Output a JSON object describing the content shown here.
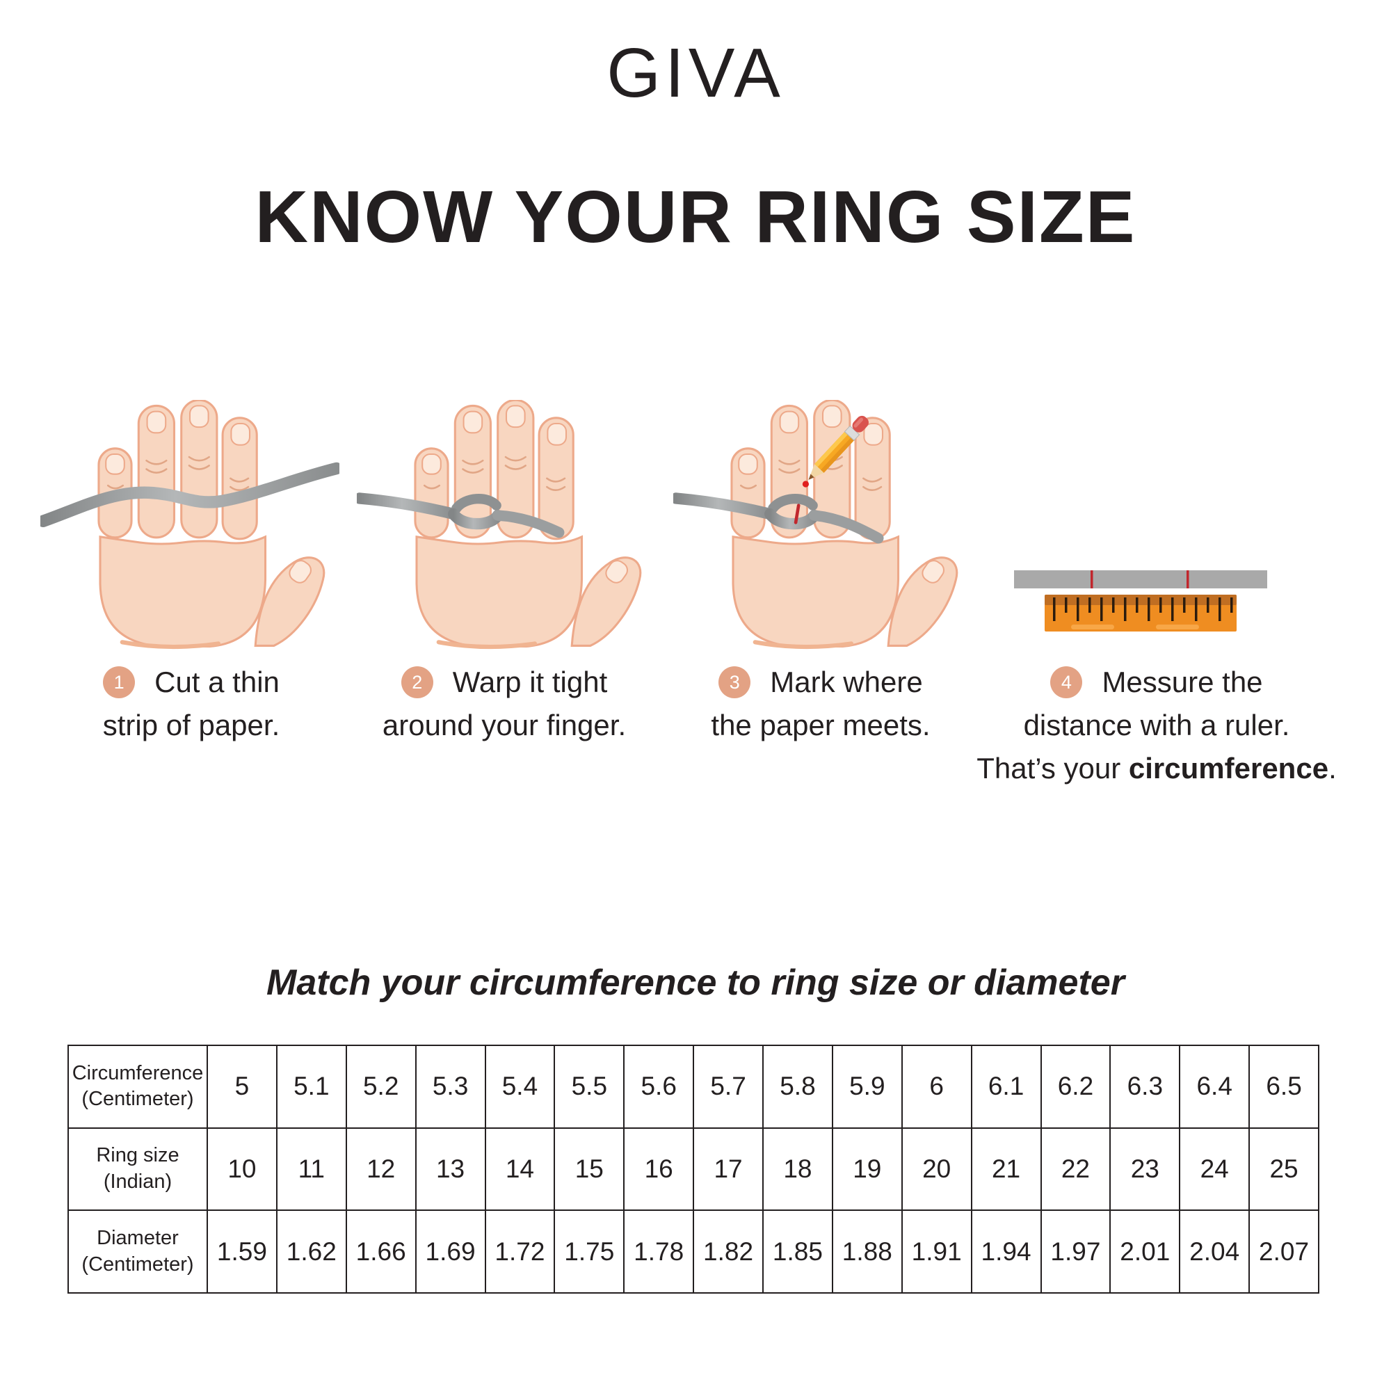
{
  "brand": {
    "logo": "GIVA"
  },
  "title": "KNOW YOUR RING SIZE",
  "steps": [
    {
      "number": "1",
      "lines": [
        "Cut a thin",
        "strip of paper."
      ]
    },
    {
      "number": "2",
      "lines": [
        "Warp it tight",
        "around your finger."
      ]
    },
    {
      "number": "3",
      "lines": [
        "Mark where",
        "the paper meets."
      ]
    },
    {
      "number": "4",
      "lines": [
        "Messure the",
        "distance with a ruler."
      ],
      "line3_prefix": "That’s your ",
      "line3_bold": "circumference",
      "line3_suffix": "."
    }
  ],
  "illustrations": {
    "step1": "hand-with-paper-strip",
    "step2": "hand-with-strip-wrapped-around-finger",
    "step3": "hand-with-strip-marked-by-pencil",
    "step4": "ruler-measuring-paper-strip"
  },
  "table": {
    "heading": "Match your circumference to ring size or diameter",
    "rows": [
      {
        "label_lines": [
          "Circumference",
          "(Centimeter)"
        ],
        "values": [
          "5",
          "5.1",
          "5.2",
          "5.3",
          "5.4",
          "5.5",
          "5.6",
          "5.7",
          "5.8",
          "5.9",
          "6",
          "6.1",
          "6.2",
          "6.3",
          "6.4",
          "6.5"
        ]
      },
      {
        "label_lines": [
          "Ring size",
          "(Indian)"
        ],
        "values": [
          "10",
          "11",
          "12",
          "13",
          "14",
          "15",
          "16",
          "17",
          "18",
          "19",
          "20",
          "21",
          "22",
          "23",
          "24",
          "25"
        ]
      },
      {
        "label_lines": [
          "Diameter",
          "(Centimeter)"
        ],
        "values": [
          "1.59",
          "1.62",
          "1.66",
          "1.69",
          "1.72",
          "1.75",
          "1.78",
          "1.82",
          "1.85",
          "1.88",
          "1.91",
          "1.94",
          "1.97",
          "2.01",
          "2.04",
          "2.07"
        ]
      }
    ]
  },
  "colors": {
    "background": "#ffffff",
    "text": "#231f20",
    "step_badge": "#e3a284",
    "skin": "#f8d6c0",
    "skin_outline": "#eda98a",
    "strip_gray": "#9b9e9f",
    "mark_red": "#c1272d",
    "ruler_orange": "#ef8d21",
    "ruler_band": "#c06e22",
    "pencil_yellow": "#f7a823",
    "pencil_eraser": "#d9534e"
  }
}
